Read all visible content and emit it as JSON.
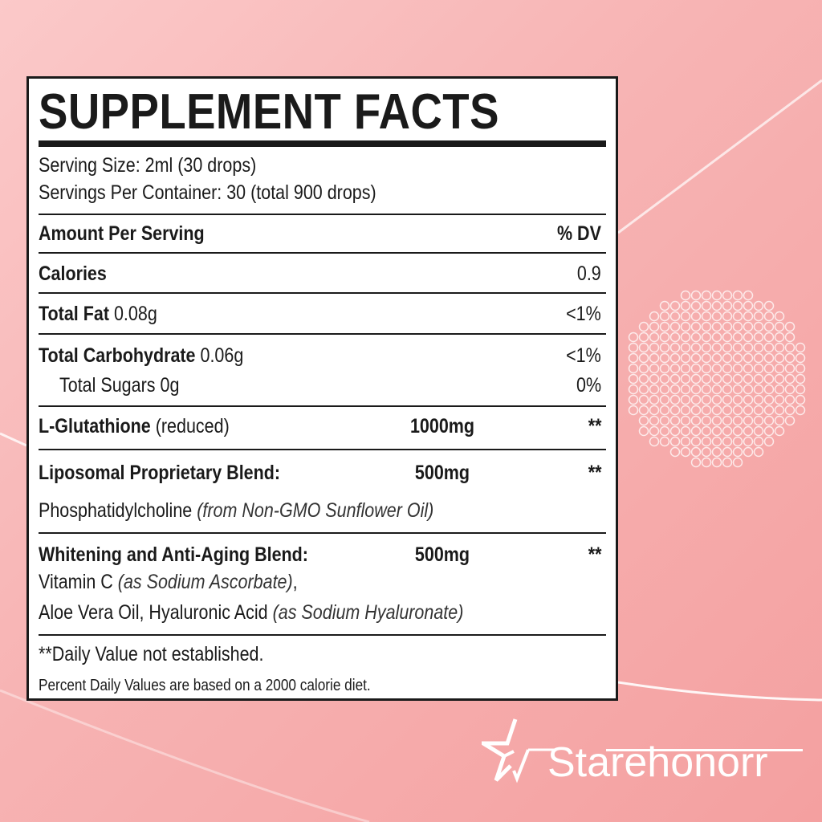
{
  "colors": {
    "background": "#f7b3b3",
    "label_bg": "#ffffff",
    "ink": "#1a1a1a",
    "brand": "#ffffff"
  },
  "label": {
    "title": "SUPPLEMENT FACTS",
    "serving_size": "Serving Size: 2ml (30 drops)",
    "servings_per_container": "Servings Per Container: 30 (total 900 drops)",
    "header_left": "Amount Per Serving",
    "header_right": "% DV",
    "calories": {
      "name": "Calories",
      "dv": "0.9"
    },
    "total_fat": {
      "name": "Total Fat",
      "amount": "0.08g",
      "dv": "<1%"
    },
    "total_carb": {
      "name": "Total Carbohydrate",
      "amount": "0.06g",
      "dv": "<1%"
    },
    "total_sugars": {
      "name": "Total Sugars 0g",
      "dv": "0%"
    },
    "glutathione": {
      "name": "L-Glutathione",
      "note": "(reduced)",
      "amount": "1000mg",
      "dv": "**"
    },
    "liposomal": {
      "name": "Liposomal Proprietary Blend:",
      "amount": "500mg",
      "dv": "**",
      "ingredient": "Phosphatidylcholine",
      "ingredient_note": "(from Non-GMO Sunflower Oil)"
    },
    "whitening": {
      "name": "Whitening and Anti-Aging Blend:",
      "amount": "500mg",
      "dv": "**",
      "line1": "Vitamin C",
      "line1_note": "(as Sodium Ascorbate)",
      "line1_end": ",",
      "line2": "Aloe Vera Oil, Hyaluronic Acid",
      "line2_note": "(as Sodium Hyaluronate)"
    },
    "footnote1": "**Daily Value not established.",
    "footnote2": "Percent Daily Values are based on a 2000 calorie diet."
  },
  "brand": {
    "name": "Starehonorr",
    "icon": "star-logo-icon"
  }
}
